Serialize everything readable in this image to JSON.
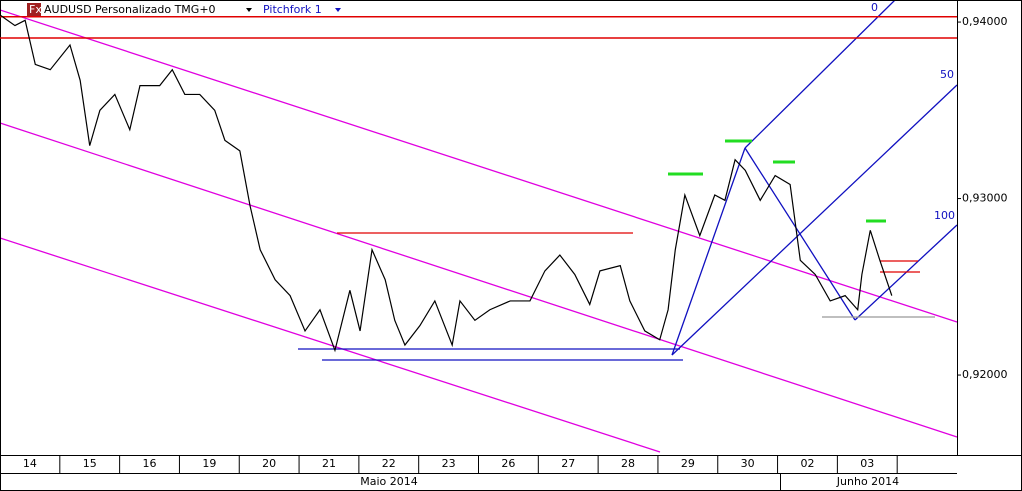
{
  "chart_data": {
    "type": "line",
    "title": "AUDUSD Personalizado TMG+0",
    "indicator": "Pitchfork 1",
    "annotations": [
      "0",
      "50",
      "100"
    ],
    "categories": [
      "14",
      "15",
      "16",
      "19",
      "20",
      "21",
      "22",
      "23",
      "26",
      "27",
      "28",
      "29",
      "30",
      "02",
      "03"
    ],
    "months": [
      "Maio 2014",
      "Junho 2014"
    ],
    "xlim": [
      0,
      16
    ],
    "ylim": [
      0.91564,
      0.94125
    ],
    "yticks": [
      {
        "value": 0.92,
        "label": "0,92000"
      },
      {
        "value": 0.93,
        "label": "0,93000"
      },
      {
        "value": 0.94,
        "label": "0,94000"
      }
    ],
    "x": [
      0,
      0.25,
      0.42,
      0.59,
      0.84,
      1.17,
      1.34,
      1.5,
      1.67,
      1.92,
      2.17,
      2.34,
      2.67,
      2.88,
      3.09,
      3.34,
      3.59,
      3.76,
      4.01,
      4.18,
      4.35,
      4.6,
      4.85,
      5.1,
      5.35,
      5.6,
      5.85,
      6.02,
      6.22,
      6.44,
      6.6,
      6.77,
      7.02,
      7.27,
      7.56,
      7.69,
      7.94,
      8.19,
      8.53,
      8.86,
      9.11,
      9.36,
      9.61,
      9.86,
      10.03,
      10.37,
      10.53,
      10.78,
      11.03,
      11.17,
      11.29,
      11.45,
      11.7,
      11.95,
      12.12,
      12.29,
      12.46,
      12.71,
      12.96,
      13.21,
      13.38,
      13.63,
      13.88,
      14.13,
      14.34,
      14.41,
      14.55,
      14.71,
      14.91
    ],
    "series": [
      {
        "color": "#000000",
        "values": [
          0.9404,
          0.9398,
          0.9401,
          0.9376,
          0.9373,
          0.9387,
          0.9367,
          0.933,
          0.935,
          0.9359,
          0.9339,
          0.9364,
          0.9364,
          0.9373,
          0.9359,
          0.9359,
          0.935,
          0.9333,
          0.9327,
          0.9296,
          0.9271,
          0.9254,
          0.9245,
          0.9225,
          0.9237,
          0.9214,
          0.9248,
          0.9225,
          0.9271,
          0.9254,
          0.9231,
          0.9217,
          0.9228,
          0.9242,
          0.9217,
          0.9242,
          0.9231,
          0.9237,
          0.9242,
          0.9242,
          0.9259,
          0.9268,
          0.9257,
          0.924,
          0.9259,
          0.9262,
          0.9242,
          0.9225,
          0.922,
          0.9237,
          0.9271,
          0.9302,
          0.9279,
          0.9302,
          0.9299,
          0.9322,
          0.9316,
          0.9299,
          0.9313,
          0.9308,
          0.9265,
          0.9257,
          0.9242,
          0.9245,
          0.9237,
          0.9257,
          0.9282,
          0.9265,
          0.9245
        ]
      }
    ],
    "hlines": {
      "color": "#e00000",
      "values": [
        0.9403,
        0.9391
      ]
    }
  }
}
